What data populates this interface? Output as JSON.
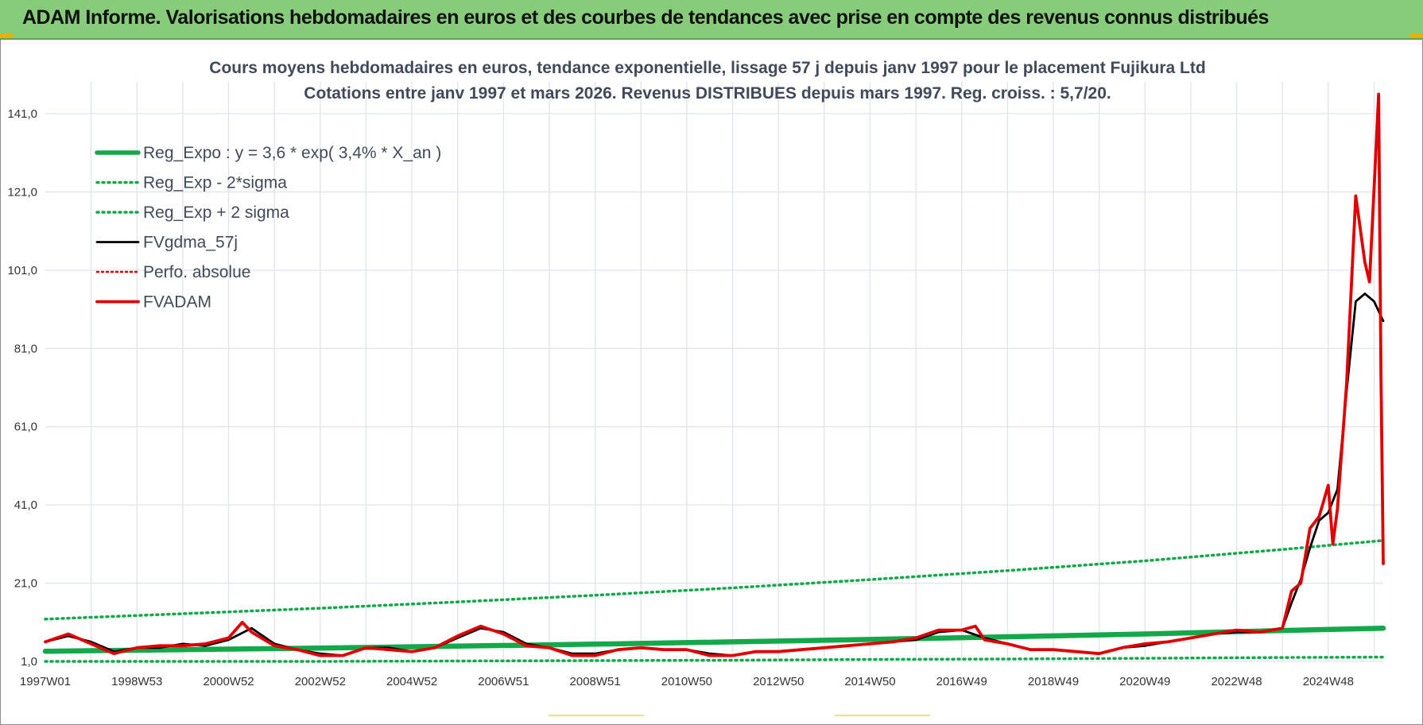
{
  "banner": {
    "title": "ADAM Informe. Valorisations hebdomadaires en euros et des courbes de tendances avec prise en compte des revenus connus distribués"
  },
  "colors": {
    "banner_bg": "#86cc7a",
    "reg_expo": "#13a84a",
    "sigma_bands": "#13a84a",
    "gdma": "#000000",
    "perfo": "#e00000",
    "fvadam": "#e00000",
    "grid": "#dfe3ea"
  },
  "chart_data": {
    "type": "line",
    "title": [
      "Cours moyens hebdomadaires en euros, tendance exponentielle, lissage 57 j depuis janv 1997 pour le placement Fujikura Ltd",
      "Cotations entre janv 1997 et mars 2026. Revenus DISTRIBUES depuis mars 1997.  Reg. croiss. : 5,7/20."
    ],
    "xlabel": "",
    "ylabel": "",
    "ylim": [
      1.0,
      141.0
    ],
    "xlim": [
      1997.0,
      2026.2
    ],
    "y_ticks": [
      "1,0",
      "21,0",
      "41,0",
      "61,0",
      "81,0",
      "101,0",
      "121,0",
      "141,0"
    ],
    "y_tick_values": [
      1,
      21,
      41,
      61,
      81,
      101,
      121,
      141
    ],
    "x_ticks": [
      "1997W01",
      "1998W53",
      "2000W52",
      "2002W52",
      "2004W52",
      "2006W51",
      "2008W51",
      "2010W50",
      "2012W50",
      "2014W50",
      "2016W49",
      "2018W49",
      "2020W49",
      "2022W48",
      "2024W48"
    ],
    "x_tick_values": [
      1997.0,
      1999.0,
      2001.0,
      2003.0,
      2005.0,
      2007.0,
      2009.0,
      2011.0,
      2013.0,
      2015.0,
      2017.0,
      2019.0,
      2021.0,
      2023.0,
      2025.0
    ],
    "grid": true,
    "legend_position": "top-left",
    "series": [
      {
        "name": "Reg_Expo : y = 3,6 * exp( 3,4% *  X_an )",
        "style": "solid-thick",
        "x": [
          1997.0,
          2000.0,
          2003.0,
          2006.0,
          2009.0,
          2012.0,
          2015.0,
          2018.0,
          2021.0,
          2024.0,
          2026.2
        ],
        "y": [
          3.6,
          4.0,
          4.4,
          4.9,
          5.4,
          6.0,
          6.6,
          7.3,
          8.0,
          8.9,
          9.5
        ]
      },
      {
        "name": "Reg_Exp - 2*sigma",
        "style": "dotted",
        "x": [
          1997.0,
          2000.0,
          2003.0,
          2006.0,
          2009.0,
          2012.0,
          2015.0,
          2018.0,
          2021.0,
          2024.0,
          2026.2
        ],
        "y": [
          1.0,
          1.0,
          1.0,
          1.1,
          1.2,
          1.3,
          1.5,
          1.6,
          1.8,
          2.0,
          2.1
        ]
      },
      {
        "name": "Reg_Exp + 2 sigma",
        "style": "dotted",
        "x": [
          1997.0,
          2000.0,
          2003.0,
          2006.0,
          2009.0,
          2012.0,
          2015.0,
          2018.0,
          2021.0,
          2024.0,
          2026.2
        ],
        "y": [
          11.8,
          13.2,
          14.6,
          16.2,
          17.9,
          19.8,
          21.9,
          24.2,
          26.7,
          29.6,
          31.9
        ]
      },
      {
        "name": "FVgdma_57j",
        "style": "solid",
        "x": [
          1997.0,
          1997.5,
          1998.0,
          1998.5,
          1999.0,
          1999.5,
          2000.0,
          2000.5,
          2001.0,
          2001.5,
          2002.0,
          2002.5,
          2003.0,
          2003.5,
          2004.0,
          2004.5,
          2005.0,
          2005.5,
          2006.0,
          2006.5,
          2007.0,
          2007.5,
          2008.0,
          2008.5,
          2009.0,
          2009.5,
          2010.0,
          2010.5,
          2011.0,
          2011.5,
          2012.0,
          2012.5,
          2013.0,
          2013.5,
          2014.0,
          2014.5,
          2015.0,
          2015.5,
          2016.0,
          2016.5,
          2017.0,
          2017.5,
          2018.0,
          2018.5,
          2019.0,
          2019.5,
          2020.0,
          2020.5,
          2021.0,
          2021.5,
          2022.0,
          2022.5,
          2023.0,
          2023.5,
          2024.0,
          2024.2,
          2024.4,
          2024.6,
          2024.8,
          2025.0,
          2025.2,
          2025.4,
          2025.6,
          2025.8,
          2026.0,
          2026.2
        ],
        "y": [
          6.0,
          7.5,
          6.0,
          3.5,
          4.5,
          4.5,
          5.5,
          5.0,
          6.5,
          9.5,
          5.5,
          4.0,
          3.0,
          2.5,
          4.5,
          4.5,
          3.5,
          4.5,
          7.0,
          9.5,
          8.5,
          5.5,
          4.5,
          3.0,
          3.0,
          4.0,
          4.5,
          4.0,
          4.0,
          3.0,
          2.5,
          3.5,
          3.5,
          4.0,
          4.5,
          5.0,
          5.5,
          6.0,
          6.5,
          8.5,
          9.0,
          7.0,
          5.5,
          4.0,
          4.0,
          3.5,
          3.0,
          4.5,
          5.0,
          6.0,
          7.0,
          8.0,
          8.5,
          8.5,
          9.5,
          16.0,
          22.0,
          30.0,
          37.0,
          39.0,
          45.0,
          70.0,
          93.0,
          95.0,
          93.0,
          88.0
        ]
      },
      {
        "name": "Perfo. absolue",
        "style": "dotted",
        "x": [],
        "y": []
      },
      {
        "name": "FVADAM",
        "style": "solid-thick",
        "x": [
          1997.0,
          1997.5,
          1998.0,
          1998.5,
          1999.0,
          1999.5,
          2000.0,
          2000.5,
          2001.0,
          2001.3,
          2001.5,
          2002.0,
          2002.5,
          2003.0,
          2003.5,
          2004.0,
          2004.5,
          2005.0,
          2005.5,
          2006.0,
          2006.5,
          2007.0,
          2007.5,
          2008.0,
          2008.5,
          2009.0,
          2009.5,
          2010.0,
          2010.5,
          2011.0,
          2011.5,
          2012.0,
          2012.5,
          2013.0,
          2013.5,
          2014.0,
          2014.5,
          2015.0,
          2015.5,
          2016.0,
          2016.5,
          2017.0,
          2017.3,
          2017.5,
          2018.0,
          2018.5,
          2019.0,
          2019.5,
          2020.0,
          2020.5,
          2021.0,
          2021.5,
          2022.0,
          2022.5,
          2023.0,
          2023.5,
          2024.0,
          2024.2,
          2024.4,
          2024.6,
          2024.8,
          2025.0,
          2025.1,
          2025.2,
          2025.4,
          2025.6,
          2025.8,
          2025.9,
          2026.0,
          2026.1,
          2026.15,
          2026.2
        ],
        "y": [
          6.0,
          8.0,
          5.5,
          3.0,
          4.5,
          5.0,
          5.0,
          5.5,
          7.0,
          11.0,
          8.5,
          5.0,
          4.0,
          2.5,
          2.5,
          4.5,
          4.0,
          3.5,
          4.5,
          7.5,
          10.0,
          8.0,
          5.0,
          4.5,
          2.5,
          2.5,
          4.0,
          4.5,
          4.0,
          4.0,
          2.5,
          2.5,
          3.5,
          3.5,
          4.0,
          4.5,
          5.0,
          5.5,
          6.0,
          7.0,
          9.0,
          9.0,
          10.0,
          6.5,
          5.5,
          4.0,
          4.0,
          3.5,
          3.0,
          4.5,
          5.5,
          6.0,
          7.0,
          8.0,
          9.0,
          8.5,
          9.5,
          19.0,
          21.0,
          35.0,
          38.0,
          46.0,
          31.0,
          40.0,
          72.0,
          120.0,
          103.0,
          98.0,
          122.0,
          148.0,
          75.0,
          26.0
        ]
      }
    ]
  }
}
